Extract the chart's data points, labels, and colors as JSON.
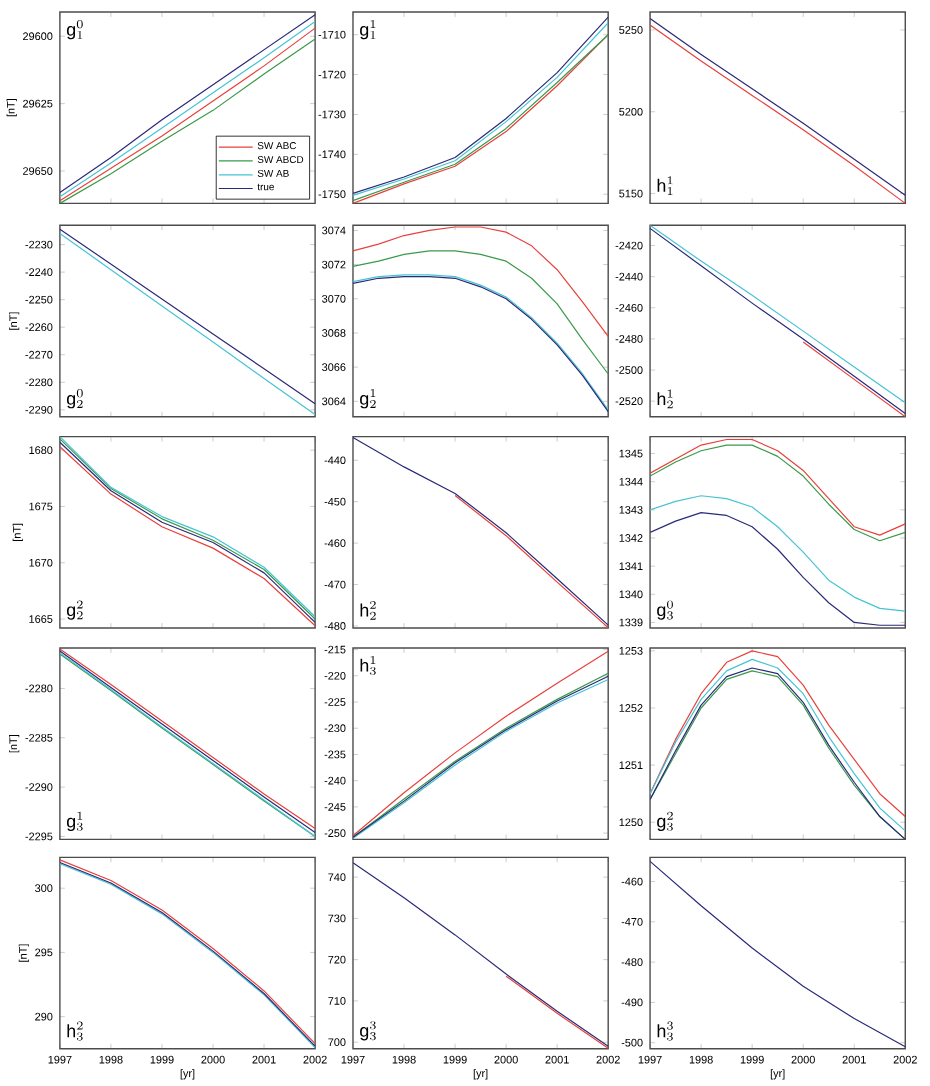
{
  "chart_data": [
    {
      "type": "line",
      "annotations": [
        "\\mathrm{g}_{1}^{0}"
      ],
      "ylabel": "[nT]",
      "tick_labels": "y",
      "legend": "bottom right",
      "x": [
        1997,
        1998,
        1999,
        2000,
        2001,
        2002
      ],
      "xlim": [
        1997,
        2002
      ],
      "xticks": [
        1997,
        1998,
        1999,
        2000,
        2001,
        2002
      ],
      "ylim": [
        29662,
        29591
      ],
      "yticks": [
        29600,
        29625,
        29650
      ],
      "series": [
        {
          "name": "SW  ABC",
          "color": "#e8413c",
          "values": [
            29661,
            29649,
            29637,
            29624,
            29611,
            29597
          ]
        },
        {
          "name": "SW  ABCD",
          "color": "#3a9a4a",
          "values": [
            29662,
            29651,
            29639,
            29627.5,
            29614,
            29601
          ]
        },
        {
          "name": "SW  AB",
          "color": "#45c4d4",
          "values": [
            29659.5,
            29647,
            29634,
            29621,
            29608,
            29594.5
          ]
        },
        {
          "name": "true",
          "color": "#2a2a7a",
          "values": [
            29658,
            29645,
            29631,
            29618,
            29605,
            29592
          ]
        }
      ]
    },
    {
      "type": "line",
      "annotations": [
        "\\mathrm{g}_{1}^{1}"
      ],
      "tick_labels": "y",
      "x": [
        1997,
        1998,
        1999,
        2000,
        2001,
        2002
      ],
      "xlim": [
        1997,
        2002
      ],
      "xticks": [
        1997,
        1998,
        1999,
        2000,
        2001,
        2002
      ],
      "ylim": [
        -1752.3,
        -1704.3
      ],
      "yticks": [
        -1750,
        -1740,
        -1730,
        -1720,
        -1710
      ],
      "series": [
        {
          "color": "#e8413c",
          "values": [
            -1752.3,
            -1747.4,
            -1743,
            -1734.3,
            -1722.8,
            -1710
          ]
        },
        {
          "color": "#3a9a4a",
          "values": [
            -1751.6,
            -1747,
            -1742.5,
            -1733.5,
            -1722,
            -1710
          ]
        },
        {
          "color": "#45c4d4",
          "values": [
            -1750.3,
            -1746.2,
            -1741.6,
            -1731.8,
            -1720.7,
            -1707
          ]
        },
        {
          "color": "#2a2a7a",
          "values": [
            -1749.8,
            -1745.7,
            -1740.8,
            -1731,
            -1719.5,
            -1705.6
          ]
        }
      ]
    },
    {
      "type": "line",
      "annotations": [
        "\\mathrm{h}_{1}^{1}"
      ],
      "tick_labels": "y",
      "x": [
        1997,
        1998,
        1999,
        2000,
        2001,
        2002
      ],
      "xlim": [
        1997,
        2002
      ],
      "xticks": [
        1997,
        1998,
        1999,
        2000,
        2001,
        2002
      ],
      "ylim": [
        5144,
        5261
      ],
      "yticks": [
        5150,
        5200,
        5250
      ],
      "series": [
        {
          "color": "#e8413c",
          "values": [
            5253,
            5231,
            5210,
            5189,
            5167,
            5144
          ]
        },
        {
          "color": "#2a2a7a",
          "values": [
            5257,
            5235,
            5214,
            5193,
            5171,
            5149
          ]
        }
      ]
    },
    {
      "type": "line",
      "annotations": [
        "\\mathrm{g}_{2}^{0}"
      ],
      "ylabel": "[nT]",
      "tick_labels": "y",
      "x": [
        1997,
        1998,
        1999,
        2000,
        2001,
        2002
      ],
      "xlim": [
        1997,
        2002
      ],
      "xticks": [
        1997,
        1998,
        1999,
        2000,
        2001,
        2002
      ],
      "ylim": [
        -2292.5,
        -2223
      ],
      "yticks": [
        -2290,
        -2280,
        -2270,
        -2260,
        -2250,
        -2240,
        -2230
      ],
      "series": [
        {
          "color": "#45c4d4",
          "values": [
            -2226,
            -2239.1,
            -2252.3,
            -2265.4,
            -2278.6,
            -2291.7
          ]
        },
        {
          "color": "#2a2a7a",
          "values": [
            -2224.4,
            -2237.1,
            -2249.8,
            -2262.5,
            -2275.1,
            -2287.8
          ]
        }
      ]
    },
    {
      "type": "line",
      "annotations": [
        "\\mathrm{g}_{2}^{1}"
      ],
      "tick_labels": "y",
      "x": [
        1997,
        1997.5,
        1998,
        1998.5,
        1999,
        1999.5,
        2000,
        2000.5,
        2001,
        2001.5,
        2002
      ],
      "xlim": [
        1997,
        2002
      ],
      "xticks": [
        1997,
        1998,
        1999,
        2000,
        2001,
        2002
      ],
      "ylim": [
        3063.1,
        3074.3
      ],
      "yticks": [
        3064,
        3066,
        3068,
        3070,
        3072,
        3074
      ],
      "series": [
        {
          "color": "#e8413c",
          "values": [
            3072.8,
            3073.2,
            3073.7,
            3074,
            3074.2,
            3074.2,
            3073.9,
            3073.1,
            3071.7,
            3069.8,
            3067.8
          ]
        },
        {
          "color": "#3a9a4a",
          "values": [
            3071.9,
            3072.2,
            3072.6,
            3072.8,
            3072.8,
            3072.6,
            3072.2,
            3071.2,
            3069.7,
            3067.6,
            3065.6
          ]
        },
        {
          "color": "#45c4d4",
          "values": [
            3071,
            3071.3,
            3071.4,
            3071.4,
            3071.3,
            3070.8,
            3070.1,
            3068.9,
            3067.4,
            3065.6,
            3063.5
          ]
        },
        {
          "color": "#2a2a7a",
          "values": [
            3070.9,
            3071.2,
            3071.3,
            3071.3,
            3071.2,
            3070.7,
            3070,
            3068.8,
            3067.3,
            3065.5,
            3063.4
          ]
        }
      ]
    },
    {
      "type": "line",
      "annotations": [
        "\\mathrm{h}_{2}^{1}"
      ],
      "tick_labels": "y",
      "x": [
        1997,
        1998,
        1999,
        2000,
        2001,
        2002
      ],
      "xlim": [
        1997,
        2002
      ],
      "xticks": [
        1997,
        1998,
        1999,
        2000,
        2001,
        2002
      ],
      "ylim": [
        -2530,
        -2407
      ],
      "yticks": [
        -2520,
        -2500,
        -2480,
        -2460,
        -2440,
        -2420
      ],
      "series": [
        {
          "color": "#e8413c",
          "values": [
            null,
            null,
            null,
            -2482,
            -2506,
            -2530
          ]
        },
        {
          "color": "#45c4d4",
          "values": [
            -2407,
            -2430,
            -2452,
            -2475,
            -2498,
            -2521
          ]
        },
        {
          "color": "#2a2a7a",
          "values": [
            -2409,
            -2433,
            -2457,
            -2480,
            -2504,
            -2528
          ]
        }
      ]
    },
    {
      "type": "line",
      "annotations": [
        "\\mathrm{g}_{2}^{2}"
      ],
      "ylabel": "[nT]",
      "tick_labels": "y",
      "x": [
        1997,
        1998,
        1999,
        2000,
        2001,
        2002
      ],
      "xlim": [
        1997,
        2002
      ],
      "xticks": [
        1997,
        1998,
        1999,
        2000,
        2001,
        2002
      ],
      "ylim": [
        1664.2,
        1681.2
      ],
      "yticks": [
        1665,
        1670,
        1675,
        1680
      ],
      "series": [
        {
          "color": "#e8413c",
          "values": [
            1680.3,
            1676.1,
            1673.2,
            1671.3,
            1668.6,
            1664.4
          ]
        },
        {
          "color": "#3a9a4a",
          "values": [
            1681,
            1676.6,
            1673.9,
            1672,
            1669.4,
            1665
          ]
        },
        {
          "color": "#45c4d4",
          "values": [
            1681.2,
            1676.7,
            1674.1,
            1672.3,
            1669.6,
            1665.2
          ]
        },
        {
          "color": "#2a2a7a",
          "values": [
            1680.7,
            1676.4,
            1673.6,
            1671.8,
            1669.1,
            1664.7
          ]
        }
      ]
    },
    {
      "type": "line",
      "annotations": [
        "\\mathrm{h}_{2}^{2}"
      ],
      "tick_labels": "y",
      "x": [
        1997,
        1998,
        1999,
        2000,
        2001,
        2002
      ],
      "xlim": [
        1997,
        2002
      ],
      "xticks": [
        1997,
        1998,
        1999,
        2000,
        2001,
        2002
      ],
      "ylim": [
        -480.5,
        -434.3
      ],
      "yticks": [
        -480,
        -470,
        -460,
        -450,
        -440
      ],
      "series": [
        {
          "color": "#e8413c",
          "values": [
            null,
            null,
            -448.5,
            -458.2,
            -469.4,
            -480.4
          ]
        },
        {
          "color": "#2a2a7a",
          "values": [
            -434.5,
            -441.6,
            -448,
            -457.5,
            -468.6,
            -479.8
          ]
        }
      ]
    },
    {
      "type": "line",
      "annotations": [
        "\\mathrm{g}_{3}^{0}"
      ],
      "tick_labels": "y",
      "x": [
        1997,
        1997.5,
        1998,
        1998.5,
        1999,
        1999.5,
        2000,
        2000.5,
        2001,
        2001.5,
        2002
      ],
      "xlim": [
        1997,
        2002
      ],
      "xticks": [
        1997,
        1998,
        1999,
        2000,
        2001,
        2002
      ],
      "ylim": [
        1338.8,
        1345.6
      ],
      "yticks": [
        1339,
        1340,
        1341,
        1342,
        1343,
        1344,
        1345
      ],
      "series": [
        {
          "color": "#e8413c",
          "values": [
            1344.3,
            1344.8,
            1345.3,
            1345.5,
            1345.5,
            1345.1,
            1344.4,
            1343.4,
            1342.4,
            1342.1,
            1342.5
          ]
        },
        {
          "color": "#3a9a4a",
          "values": [
            1344.2,
            1344.7,
            1345.1,
            1345.3,
            1345.3,
            1344.9,
            1344.2,
            1343.2,
            1342.3,
            1341.9,
            1342.2
          ]
        },
        {
          "color": "#45c4d4",
          "values": [
            1343,
            1343.3,
            1343.5,
            1343.4,
            1343.1,
            1342.4,
            1341.5,
            1340.5,
            1339.9,
            1339.5,
            1339.4
          ]
        },
        {
          "color": "#2a2a7a",
          "values": [
            1342.2,
            1342.6,
            1342.9,
            1342.8,
            1342.4,
            1341.6,
            1340.6,
            1339.7,
            1339,
            1338.9,
            1338.9
          ]
        }
      ]
    },
    {
      "type": "line",
      "annotations": [
        "\\mathrm{g}_{3}^{1}"
      ],
      "ylabel": "[nT]",
      "tick_labels": "y",
      "x": [
        1997,
        1998,
        1999,
        2000,
        2001,
        2002
      ],
      "xlim": [
        1997,
        2002
      ],
      "xticks": [
        1997,
        1998,
        1999,
        2000,
        2001,
        2002
      ],
      "ylim": [
        -2295.3,
        -2275.9
      ],
      "yticks": [
        -2295,
        -2290,
        -2285,
        -2280
      ],
      "series": [
        {
          "color": "#e8413c",
          "values": [
            -2276,
            -2279.6,
            -2283.3,
            -2287,
            -2290.7,
            -2294.2
          ]
        },
        {
          "color": "#3a9a4a",
          "values": [
            -2276.5,
            -2280.2,
            -2284,
            -2287.7,
            -2291.4,
            -2295
          ]
        },
        {
          "color": "#45c4d4",
          "values": [
            -2276.4,
            -2280.1,
            -2283.9,
            -2287.6,
            -2291.3,
            -2295
          ]
        },
        {
          "color": "#2a2a7a",
          "values": [
            -2276.2,
            -2279.9,
            -2283.6,
            -2287.3,
            -2291,
            -2294.6
          ]
        }
      ]
    },
    {
      "type": "line",
      "annotations": [
        "\\mathrm{h}_{3}^{1}"
      ],
      "tick_labels": "y",
      "x": [
        1997,
        1998,
        1999,
        2000,
        2001,
        2002
      ],
      "xlim": [
        1997,
        2002
      ],
      "xticks": [
        1997,
        1998,
        1999,
        2000,
        2001,
        2002
      ],
      "ylim": [
        -251.2,
        -214.7
      ],
      "yticks": [
        -250,
        -245,
        -240,
        -235,
        -230,
        -225,
        -220,
        -215
      ],
      "series": [
        {
          "color": "#e8413c",
          "values": [
            -250.5,
            -242.3,
            -234.7,
            -227.7,
            -221.4,
            -215.3
          ]
        },
        {
          "color": "#3a9a4a",
          "values": [
            -250.8,
            -243.5,
            -236.3,
            -230,
            -224.5,
            -219.5
          ]
        },
        {
          "color": "#45c4d4",
          "values": [
            -251,
            -244.2,
            -237,
            -230.6,
            -225.2,
            -220.7
          ]
        },
        {
          "color": "#2a2a7a",
          "values": [
            -250.8,
            -243.9,
            -236.6,
            -230.3,
            -224.8,
            -220.1
          ]
        }
      ]
    },
    {
      "type": "line",
      "annotations": [
        "\\mathrm{g}_{3}^{2}"
      ],
      "tick_labels": "y",
      "x": [
        1997,
        1997.5,
        1998,
        1998.5,
        1999,
        1999.5,
        2000,
        2000.5,
        2001,
        2001.5,
        2002
      ],
      "xlim": [
        1997,
        2002
      ],
      "xticks": [
        1997,
        1998,
        1999,
        2000,
        2001,
        2002
      ],
      "ylim": [
        1249.7,
        1253.05
      ],
      "yticks": [
        1250,
        1251,
        1252,
        1253
      ],
      "series": [
        {
          "color": "#e8413c",
          "values": [
            1250.5,
            1251.45,
            1252.25,
            1252.8,
            1253,
            1252.9,
            1252.4,
            1251.7,
            1251.1,
            1250.5,
            1250.1
          ]
        },
        {
          "color": "#3a9a4a",
          "values": [
            1250.4,
            1251.2,
            1252,
            1252.5,
            1252.65,
            1252.55,
            1252.05,
            1251.3,
            1250.65,
            1250.1,
            1249.7
          ]
        },
        {
          "color": "#45c4d4",
          "values": [
            1250.5,
            1251.4,
            1252.15,
            1252.65,
            1252.85,
            1252.7,
            1252.25,
            1251.5,
            1250.85,
            1250.25,
            1249.85
          ]
        },
        {
          "color": "#2a2a7a",
          "values": [
            1250.4,
            1251.25,
            1252.05,
            1252.55,
            1252.7,
            1252.6,
            1252.1,
            1251.35,
            1250.7,
            1250.1,
            1249.7
          ]
        }
      ]
    },
    {
      "type": "line",
      "annotations": [
        "\\mathrm{h}_{3}^{2}"
      ],
      "ylabel": "[nT]",
      "xlabel": "[yr]",
      "x": [
        1997,
        1998,
        1999,
        2000,
        2001,
        2002
      ],
      "xlim": [
        1997,
        2002
      ],
      "xticks": [
        1997,
        1998,
        1999,
        2000,
        2001,
        2002
      ],
      "ylim": [
        287.5,
        302.4
      ],
      "yticks": [
        290,
        295,
        300
      ],
      "series": [
        {
          "color": "#e8413c",
          "values": [
            302.2,
            300.6,
            298.3,
            295.3,
            292,
            287.9
          ]
        },
        {
          "color": "#45c4d4",
          "values": [
            301.9,
            300.3,
            298,
            295,
            291.7,
            287.6
          ]
        },
        {
          "color": "#2a2a7a",
          "values": [
            302,
            300.4,
            298.1,
            295.1,
            291.8,
            287.7
          ]
        }
      ]
    },
    {
      "type": "line",
      "annotations": [
        "\\mathrm{g}_{3}^{3}"
      ],
      "xlabel": "[yr]",
      "x": [
        1997,
        1998,
        1999,
        2000,
        2001,
        2002
      ],
      "xlim": [
        1997,
        2002
      ],
      "xticks": [
        1997,
        1998,
        1999,
        2000,
        2001,
        2002
      ],
      "ylim": [
        698.4,
        744.8
      ],
      "yticks": [
        700,
        710,
        720,
        730,
        740
      ],
      "series": [
        {
          "color": "#e8413c",
          "values": [
            null,
            null,
            null,
            716,
            707,
            698.5
          ]
        },
        {
          "color": "#2a2a7a",
          "values": [
            743.5,
            735,
            726,
            716.5,
            707.5,
            699
          ]
        }
      ]
    },
    {
      "type": "line",
      "annotations": [
        "\\mathrm{h}_{3}^{3}"
      ],
      "xlabel": "[yr]",
      "x": [
        1997,
        1998,
        1999,
        2000,
        2001,
        2002
      ],
      "xlim": [
        1997,
        2002
      ],
      "xticks": [
        1997,
        1998,
        1999,
        2000,
        2001,
        2002
      ],
      "ylim": [
        -501.5,
        -454
      ],
      "yticks": [
        -500,
        -490,
        -480,
        -470,
        -460
      ],
      "series": [
        {
          "color": "#2a2a7a",
          "values": [
            -455,
            -466,
            -476.5,
            -486,
            -494,
            -501
          ]
        }
      ]
    }
  ]
}
